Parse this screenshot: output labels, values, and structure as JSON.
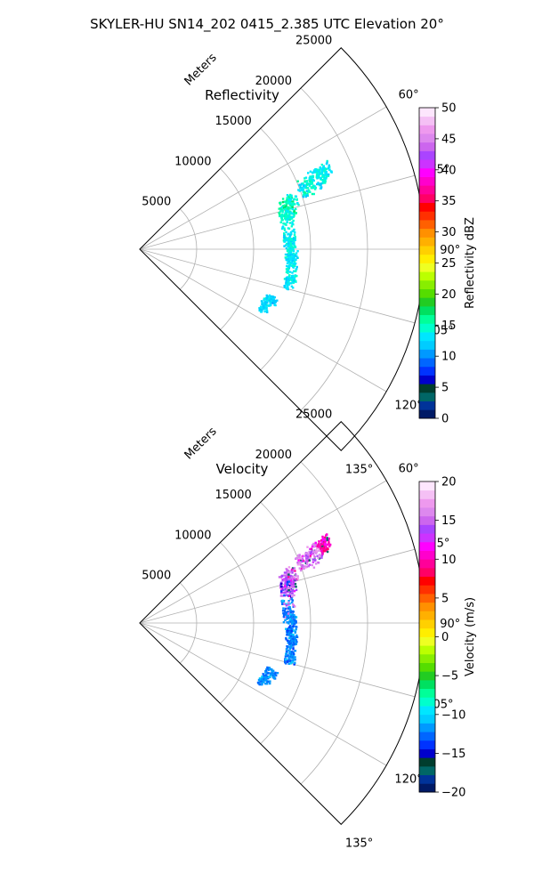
{
  "figure": {
    "title": "SKYLER-HU  SN14_202  0415_2.385 UTC Elevation 20°"
  },
  "chart_data": [
    {
      "type": "heatmap",
      "subtype": "polar-sector",
      "title": "Reflectivity",
      "radial_axis_label": "Meters",
      "radial_ticks": [
        "5000",
        "10000",
        "15000",
        "20000",
        "25000"
      ],
      "radial_tick_values": [
        5000,
        10000,
        15000,
        20000,
        25000
      ],
      "radial_range": [
        0,
        25000
      ],
      "azimuth_range_deg": [
        45,
        135
      ],
      "azimuth_ticks": [
        "60°",
        "75°",
        "90°",
        "105°",
        "120°",
        "135°"
      ],
      "azimuth_tick_values": [
        60,
        75,
        90,
        105,
        120,
        135
      ],
      "grid": true,
      "colorbar": {
        "label": "Reflectivity dBZ",
        "range": [
          0,
          50
        ],
        "ticks": [
          "0",
          "5",
          "10",
          "15",
          "20",
          "25",
          "30",
          "35",
          "40",
          "45",
          "50"
        ],
        "tick_values": [
          0,
          5,
          10,
          15,
          20,
          25,
          30,
          35,
          40,
          45,
          50
        ],
        "colors": [
          "#001a66",
          "#003399",
          "#006666",
          "#003d2e",
          "#0000cc",
          "#0033ff",
          "#0066ff",
          "#0099ff",
          "#00ccff",
          "#00e6ff",
          "#00ffcc",
          "#00ff99",
          "#00e060",
          "#22cc22",
          "#55dd00",
          "#88ee00",
          "#bbff00",
          "#eeff22",
          "#ffee00",
          "#ffd000",
          "#ffb000",
          "#ff9000",
          "#ff6000",
          "#ff3000",
          "#ff0000",
          "#ff0066",
          "#ff0099",
          "#ff00cc",
          "#ff00ff",
          "#cc33ff",
          "#aa44ff",
          "#cc66ee",
          "#dd88ee",
          "#ee99ee",
          "#f5c0f5",
          "#fde6fd"
        ]
      },
      "echo_points": [
        [
          68,
          17000,
          14,
          400,
          2.5
        ],
        [
          68.5,
          16500,
          13,
          500,
          3
        ],
        [
          69,
          16000,
          14,
          400,
          2.5
        ],
        [
          69.5,
          15600,
          15,
          500,
          3
        ],
        [
          70,
          15200,
          13,
          400,
          2.5
        ],
        [
          67.5,
          17300,
          14,
          400,
          2
        ],
        [
          67,
          17600,
          14,
          300,
          2
        ],
        [
          66.5,
          17900,
          13,
          300,
          2
        ],
        [
          73,
          13800,
          15,
          500,
          3
        ],
        [
          74,
          13500,
          16,
          600,
          3
        ],
        [
          75,
          13300,
          15,
          600,
          3.5
        ],
        [
          75.5,
          13600,
          16,
          500,
          3
        ],
        [
          76.5,
          13100,
          15,
          500,
          3
        ],
        [
          77.5,
          13200,
          14,
          500,
          3
        ],
        [
          78.5,
          13400,
          14,
          400,
          2.5
        ],
        [
          72,
          14100,
          14,
          400,
          2.5
        ],
        [
          84,
          13100,
          14,
          500,
          3
        ],
        [
          85.5,
          13200,
          14,
          500,
          3.5
        ],
        [
          87,
          13000,
          13,
          400,
          3
        ],
        [
          88,
          13300,
          13,
          400,
          2.5
        ],
        [
          91,
          13300,
          14,
          500,
          3.5
        ],
        [
          92.5,
          13400,
          14,
          500,
          3.5
        ],
        [
          94,
          13300,
          13,
          400,
          3
        ],
        [
          95.5,
          13500,
          13,
          400,
          2.5
        ],
        [
          100,
          13500,
          14,
          500,
          3
        ],
        [
          101.5,
          13600,
          14,
          500,
          3.5
        ],
        [
          103,
          13500,
          13,
          400,
          2.5
        ],
        [
          112,
          12200,
          13,
          400,
          3
        ],
        [
          113.5,
          12100,
          13,
          400,
          3
        ],
        [
          115,
          11900,
          12,
          300,
          2.5
        ],
        [
          111,
          12600,
          12,
          300,
          1.5
        ]
      ]
    },
    {
      "type": "heatmap",
      "subtype": "polar-sector",
      "title": "Velocity",
      "radial_axis_label": "Meters",
      "radial_ticks": [
        "5000",
        "10000",
        "15000",
        "20000",
        "25000"
      ],
      "radial_tick_values": [
        5000,
        10000,
        15000,
        20000,
        25000
      ],
      "radial_range": [
        0,
        25000
      ],
      "azimuth_range_deg": [
        45,
        135
      ],
      "azimuth_ticks": [
        "60°",
        "75°",
        "90°",
        "105°",
        "120°",
        "135°"
      ],
      "azimuth_tick_values": [
        60,
        75,
        90,
        105,
        120,
        135
      ],
      "grid": true,
      "colorbar": {
        "label": "Velocity (m/s)",
        "range": [
          -20,
          20
        ],
        "ticks": [
          "−20",
          "−15",
          "−10",
          "−5",
          "0",
          "5",
          "10",
          "15",
          "20"
        ],
        "tick_values": [
          -20,
          -15,
          -10,
          -5,
          0,
          5,
          10,
          15,
          20
        ],
        "colors": [
          "#001a66",
          "#003399",
          "#006666",
          "#003d2e",
          "#0000cc",
          "#0033ff",
          "#0066ff",
          "#0099ff",
          "#00ccff",
          "#00e6ff",
          "#00ffcc",
          "#00ff99",
          "#00e060",
          "#22cc22",
          "#55dd00",
          "#88ee00",
          "#bbff00",
          "#eeff22",
          "#ffee00",
          "#ffd000",
          "#ffb000",
          "#ff9000",
          "#ff6000",
          "#ff3000",
          "#ff0000",
          "#ff0066",
          "#ff0099",
          "#ff00cc",
          "#ff00ff",
          "#cc33ff",
          "#aa44ff",
          "#cc66ee",
          "#dd88ee",
          "#ee99ee",
          "#f5c0f5",
          "#fde6fd"
        ]
      },
      "echo_points": [
        [
          68,
          17000,
          15,
          400,
          2.5
        ],
        [
          68.5,
          16500,
          16,
          500,
          3
        ],
        [
          69,
          16000,
          14,
          400,
          2.5
        ],
        [
          69.5,
          15600,
          15,
          500,
          3
        ],
        [
          70,
          15200,
          16,
          400,
          2.5
        ],
        [
          67.5,
          17300,
          10,
          400,
          2
        ],
        [
          67,
          17600,
          9,
          300,
          2
        ],
        [
          66.5,
          17900,
          11,
          300,
          2
        ],
        [
          73,
          13800,
          15,
          500,
          3
        ],
        [
          74,
          13500,
          14,
          600,
          3
        ],
        [
          75,
          13300,
          15,
          600,
          3.5
        ],
        [
          75.5,
          13600,
          13,
          500,
          3
        ],
        [
          76.5,
          13100,
          14,
          500,
          3
        ],
        [
          77.5,
          13200,
          -14,
          500,
          3
        ],
        [
          78.5,
          13400,
          15,
          400,
          2.5
        ],
        [
          72,
          14100,
          16,
          400,
          2.5
        ],
        [
          84,
          13100,
          -12,
          500,
          3
        ],
        [
          85.5,
          13200,
          15,
          500,
          3.5
        ],
        [
          87,
          13000,
          -12,
          400,
          3
        ],
        [
          88,
          13300,
          -12,
          400,
          2.5
        ],
        [
          91,
          13300,
          -12,
          500,
          3.5
        ],
        [
          92.5,
          13400,
          -12,
          500,
          3.5
        ],
        [
          94,
          13300,
          -13,
          400,
          3
        ],
        [
          95.5,
          13500,
          -12,
          400,
          2.5
        ],
        [
          100,
          13500,
          -12,
          500,
          3
        ],
        [
          101.5,
          13600,
          -13,
          500,
          3.5
        ],
        [
          103,
          13500,
          -12,
          400,
          2.5
        ],
        [
          112,
          12200,
          -12,
          400,
          3
        ],
        [
          113.5,
          12100,
          -12,
          400,
          3
        ],
        [
          115,
          11900,
          -12,
          300,
          2.5
        ],
        [
          111,
          12600,
          -12,
          300,
          1.5
        ]
      ]
    }
  ]
}
